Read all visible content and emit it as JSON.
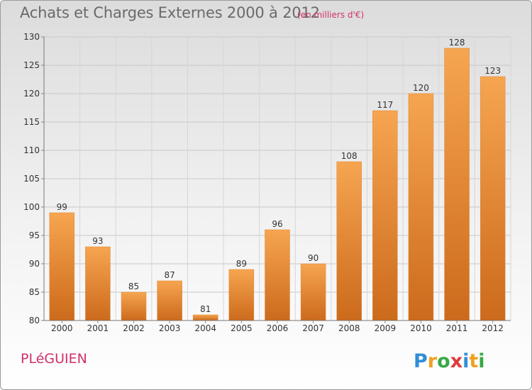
{
  "title": "Achats et Charges Externes 2000 à 2012",
  "unit_note": "(en milliers d'€)",
  "commune": "PLéGUIEN",
  "logo": {
    "text": "Proxiti",
    "icon": "proxiti-logo"
  },
  "colors": {
    "bar_light": "#f6a550",
    "bar_dark": "#cc6a1c",
    "title": "#6a6a6a",
    "accent": "#d0306b"
  },
  "chart_data": {
    "type": "bar",
    "title": "Achats et Charges Externes 2000 à 2012",
    "subtitle": "(en milliers d'€)",
    "categories": [
      "2000",
      "2001",
      "2002",
      "2003",
      "2004",
      "2005",
      "2006",
      "2007",
      "2008",
      "2009",
      "2010",
      "2011",
      "2012"
    ],
    "values": [
      99,
      93,
      85,
      87,
      81,
      89,
      96,
      90,
      108,
      117,
      120,
      128,
      123
    ],
    "ylim": [
      80,
      130
    ],
    "yticks": [
      80,
      85,
      90,
      95,
      100,
      105,
      110,
      115,
      120,
      125,
      130
    ],
    "grid": true,
    "xlabel": "",
    "ylabel": ""
  }
}
